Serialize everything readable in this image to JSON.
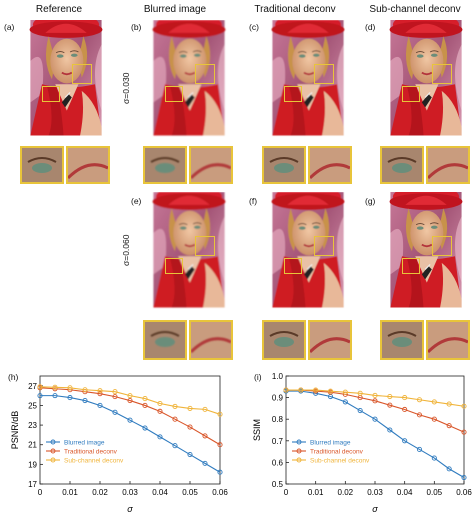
{
  "columns": [
    "Reference",
    "Blurred image",
    "Traditional deconv",
    "Sub-channel deconv"
  ],
  "panel_labels": {
    "a": "(a)",
    "b": "(b)",
    "c": "(c)",
    "d": "(d)",
    "e": "(e)",
    "f": "(f)",
    "g": "(g)",
    "h": "(h)",
    "i": "(i)"
  },
  "sigma_labels": [
    "σ=0.030",
    "σ=0.060"
  ],
  "colors": {
    "blurred": "#2f7bbf",
    "traditional": "#d9562a",
    "subchannel": "#f0b43a",
    "inset_border": "#e8c43a"
  },
  "chart_data": [
    {
      "type": "line",
      "panel": "(h)",
      "xlabel": "σ",
      "ylabel": "PSNR/dB",
      "x": [
        0,
        0.005,
        0.01,
        0.015,
        0.02,
        0.025,
        0.03,
        0.035,
        0.04,
        0.045,
        0.05,
        0.055,
        0.06
      ],
      "xticks": [
        "0",
        "0.01",
        "0.02",
        "0.03",
        "0.04",
        "0.05",
        "0.06"
      ],
      "yticks": [
        "17",
        "19",
        "21",
        "23",
        "25",
        "27"
      ],
      "xlim": [
        0,
        0.06
      ],
      "ylim": [
        17,
        28
      ],
      "legend_position": "bottom-left",
      "series": [
        {
          "name": "Blurred image",
          "values": [
            26.0,
            26.0,
            25.8,
            25.5,
            25.0,
            24.3,
            23.5,
            22.7,
            21.8,
            20.9,
            20.0,
            19.1,
            18.2
          ]
        },
        {
          "name": "Traditional deconv",
          "values": [
            26.8,
            26.7,
            26.6,
            26.4,
            26.2,
            25.9,
            25.5,
            25.0,
            24.4,
            23.6,
            22.8,
            21.9,
            21.0
          ]
        },
        {
          "name": "Sub-channel deconv",
          "values": [
            26.9,
            26.85,
            26.8,
            26.6,
            26.5,
            26.4,
            26.0,
            25.7,
            25.2,
            24.9,
            24.7,
            24.6,
            24.1
          ]
        }
      ]
    },
    {
      "type": "line",
      "panel": "(i)",
      "xlabel": "σ",
      "ylabel": "SSIM",
      "x": [
        0,
        0.005,
        0.01,
        0.015,
        0.02,
        0.025,
        0.03,
        0.035,
        0.04,
        0.045,
        0.05,
        0.055,
        0.06
      ],
      "xticks": [
        "0",
        "0.01",
        "0.02",
        "0.03",
        "0.04",
        "0.05",
        "0.06"
      ],
      "yticks": [
        "0.5",
        "0.6",
        "0.7",
        "0.8",
        "0.9",
        "1.0"
      ],
      "xlim": [
        0,
        0.06
      ],
      "ylim": [
        0.5,
        1.0
      ],
      "legend_position": "bottom-left",
      "series": [
        {
          "name": "Blurred image",
          "values": [
            0.93,
            0.93,
            0.92,
            0.905,
            0.88,
            0.84,
            0.8,
            0.75,
            0.7,
            0.66,
            0.62,
            0.57,
            0.53
          ]
        },
        {
          "name": "Traditional deconv",
          "values": [
            0.935,
            0.935,
            0.93,
            0.925,
            0.915,
            0.9,
            0.885,
            0.865,
            0.845,
            0.82,
            0.8,
            0.77,
            0.74
          ]
        },
        {
          "name": "Sub-channel deconv",
          "values": [
            0.935,
            0.935,
            0.935,
            0.93,
            0.925,
            0.92,
            0.91,
            0.905,
            0.9,
            0.89,
            0.88,
            0.87,
            0.86
          ]
        }
      ]
    }
  ]
}
